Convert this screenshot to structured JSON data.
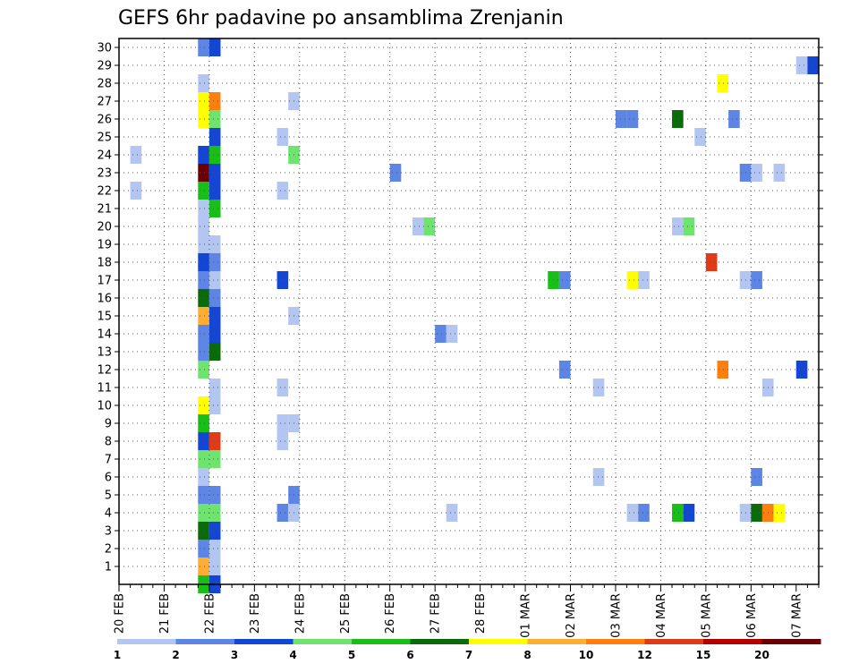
{
  "chart_data": {
    "type": "heatmap",
    "title": "GEFS 6hr padavine po ansamblima Zrenjanin",
    "xlabel": "",
    "ylabel": "",
    "x_start": "20 FEB",
    "x_step_hours": 6,
    "x_steps": 62,
    "x_ticks": [
      "20 FEB",
      "21 FEB",
      "22 FEB",
      "23 FEB",
      "24 FEB",
      "25 FEB",
      "26 FEB",
      "27 FEB",
      "28 FEB",
      "01 MAR",
      "02 MAR",
      "03 MAR",
      "04 MAR",
      "05 MAR",
      "06 MAR",
      "07 MAR"
    ],
    "y_ticks": [
      1,
      2,
      3,
      4,
      5,
      6,
      7,
      8,
      9,
      10,
      11,
      12,
      13,
      14,
      15,
      16,
      17,
      18,
      19,
      20,
      21,
      22,
      23,
      24,
      25,
      26,
      27,
      28,
      29,
      30
    ],
    "ylim": [
      0,
      30
    ],
    "grid": true,
    "legend": {
      "placement": "bottom",
      "boundaries": [
        "1",
        "2",
        "3",
        "4",
        "5",
        "6",
        "7",
        "8",
        "10",
        "12",
        "15",
        "20"
      ],
      "colors": [
        "#b3c6f2",
        "#5c85e6",
        "#1446d6",
        "#6ee36e",
        "#17bf17",
        "#0b6b0b",
        "#ffff00",
        "#ffad33",
        "#ff7f0e",
        "#e03a16",
        "#b30000",
        "#6b0000"
      ]
    },
    "cells": [
      {
        "t": 7,
        "m": 0,
        "c": 4
      },
      {
        "t": 8,
        "m": 0,
        "c": 2
      },
      {
        "t": 7,
        "m": 1,
        "c": 7
      },
      {
        "t": 8,
        "m": 1,
        "c": 0
      },
      {
        "t": 7,
        "m": 2,
        "c": 1
      },
      {
        "t": 8,
        "m": 2,
        "c": 0
      },
      {
        "t": 7,
        "m": 3,
        "c": 5
      },
      {
        "t": 8,
        "m": 3,
        "c": 2
      },
      {
        "t": 7,
        "m": 4,
        "c": 3
      },
      {
        "t": 8,
        "m": 4,
        "c": 3
      },
      {
        "t": 14,
        "m": 4,
        "c": 1
      },
      {
        "t": 15,
        "m": 4,
        "c": 0
      },
      {
        "t": 29,
        "m": 4,
        "c": 0
      },
      {
        "t": 45,
        "m": 4,
        "c": 0
      },
      {
        "t": 46,
        "m": 4,
        "c": 1
      },
      {
        "t": 49,
        "m": 4,
        "c": 4
      },
      {
        "t": 50,
        "m": 4,
        "c": 2
      },
      {
        "t": 55,
        "m": 4,
        "c": 0
      },
      {
        "t": 56,
        "m": 4,
        "c": 5
      },
      {
        "t": 57,
        "m": 4,
        "c": 8
      },
      {
        "t": 58,
        "m": 4,
        "c": 6
      },
      {
        "t": 7,
        "m": 5,
        "c": 1
      },
      {
        "t": 8,
        "m": 5,
        "c": 1
      },
      {
        "t": 15,
        "m": 5,
        "c": 1
      },
      {
        "t": 7,
        "m": 6,
        "c": 0
      },
      {
        "t": 42,
        "m": 6,
        "c": 0
      },
      {
        "t": 56,
        "m": 6,
        "c": 1
      },
      {
        "t": 7,
        "m": 7,
        "c": 3
      },
      {
        "t": 8,
        "m": 7,
        "c": 3
      },
      {
        "t": 7,
        "m": 8,
        "c": 2
      },
      {
        "t": 8,
        "m": 8,
        "c": 9
      },
      {
        "t": 14,
        "m": 8,
        "c": 0
      },
      {
        "t": 7,
        "m": 9,
        "c": 4
      },
      {
        "t": 14,
        "m": 9,
        "c": 0
      },
      {
        "t": 15,
        "m": 9,
        "c": 0
      },
      {
        "t": 7,
        "m": 10,
        "c": 6
      },
      {
        "t": 8,
        "m": 10,
        "c": 0
      },
      {
        "t": 8,
        "m": 11,
        "c": 0
      },
      {
        "t": 14,
        "m": 11,
        "c": 0
      },
      {
        "t": 42,
        "m": 11,
        "c": 0
      },
      {
        "t": 57,
        "m": 11,
        "c": 0
      },
      {
        "t": 7,
        "m": 12,
        "c": 3
      },
      {
        "t": 39,
        "m": 12,
        "c": 1
      },
      {
        "t": 53,
        "m": 12,
        "c": 8
      },
      {
        "t": 60,
        "m": 12,
        "c": 2
      },
      {
        "t": 7,
        "m": 13,
        "c": 1
      },
      {
        "t": 8,
        "m": 13,
        "c": 5
      },
      {
        "t": 7,
        "m": 14,
        "c": 1
      },
      {
        "t": 8,
        "m": 14,
        "c": 2
      },
      {
        "t": 28,
        "m": 14,
        "c": 1
      },
      {
        "t": 29,
        "m": 14,
        "c": 0
      },
      {
        "t": 7,
        "m": 15,
        "c": 7
      },
      {
        "t": 8,
        "m": 15,
        "c": 2
      },
      {
        "t": 15,
        "m": 15,
        "c": 0
      },
      {
        "t": 7,
        "m": 16,
        "c": 5
      },
      {
        "t": 8,
        "m": 16,
        "c": 1
      },
      {
        "t": 7,
        "m": 17,
        "c": 1
      },
      {
        "t": 8,
        "m": 17,
        "c": 0
      },
      {
        "t": 14,
        "m": 17,
        "c": 2
      },
      {
        "t": 38,
        "m": 17,
        "c": 4
      },
      {
        "t": 39,
        "m": 17,
        "c": 1
      },
      {
        "t": 45,
        "m": 17,
        "c": 6
      },
      {
        "t": 46,
        "m": 17,
        "c": 0
      },
      {
        "t": 55,
        "m": 17,
        "c": 0
      },
      {
        "t": 56,
        "m": 17,
        "c": 1
      },
      {
        "t": 7,
        "m": 18,
        "c": 2
      },
      {
        "t": 8,
        "m": 18,
        "c": 1
      },
      {
        "t": 52,
        "m": 18,
        "c": 9
      },
      {
        "t": 7,
        "m": 19,
        "c": 0
      },
      {
        "t": 8,
        "m": 19,
        "c": 0
      },
      {
        "t": 7,
        "m": 20,
        "c": 0
      },
      {
        "t": 26,
        "m": 20,
        "c": 0
      },
      {
        "t": 27,
        "m": 20,
        "c": 3
      },
      {
        "t": 49,
        "m": 20,
        "c": 0
      },
      {
        "t": 50,
        "m": 20,
        "c": 3
      },
      {
        "t": 7,
        "m": 21,
        "c": 0
      },
      {
        "t": 8,
        "m": 21,
        "c": 4
      },
      {
        "t": 1,
        "m": 22,
        "c": 0
      },
      {
        "t": 7,
        "m": 22,
        "c": 4
      },
      {
        "t": 8,
        "m": 22,
        "c": 2
      },
      {
        "t": 14,
        "m": 22,
        "c": 0
      },
      {
        "t": 7,
        "m": 23,
        "c": 11
      },
      {
        "t": 8,
        "m": 23,
        "c": 2
      },
      {
        "t": 24,
        "m": 23,
        "c": 1
      },
      {
        "t": 55,
        "m": 23,
        "c": 1
      },
      {
        "t": 56,
        "m": 23,
        "c": 0
      },
      {
        "t": 58,
        "m": 23,
        "c": 0
      },
      {
        "t": 1,
        "m": 24,
        "c": 0
      },
      {
        "t": 7,
        "m": 24,
        "c": 2
      },
      {
        "t": 8,
        "m": 24,
        "c": 4
      },
      {
        "t": 15,
        "m": 24,
        "c": 3
      },
      {
        "t": 8,
        "m": 25,
        "c": 2
      },
      {
        "t": 14,
        "m": 25,
        "c": 0
      },
      {
        "t": 51,
        "m": 25,
        "c": 0
      },
      {
        "t": 7,
        "m": 26,
        "c": 6
      },
      {
        "t": 8,
        "m": 26,
        "c": 3
      },
      {
        "t": 44,
        "m": 26,
        "c": 1
      },
      {
        "t": 45,
        "m": 26,
        "c": 1
      },
      {
        "t": 49,
        "m": 26,
        "c": 5
      },
      {
        "t": 54,
        "m": 26,
        "c": 1
      },
      {
        "t": 7,
        "m": 27,
        "c": 6
      },
      {
        "t": 8,
        "m": 27,
        "c": 8
      },
      {
        "t": 15,
        "m": 27,
        "c": 0
      },
      {
        "t": 7,
        "m": 28,
        "c": 0
      },
      {
        "t": 53,
        "m": 28,
        "c": 6
      },
      {
        "t": 60,
        "m": 29,
        "c": 0
      },
      {
        "t": 61,
        "m": 29,
        "c": 2
      },
      {
        "t": 7,
        "m": 30,
        "c": 1
      },
      {
        "t": 8,
        "m": 30,
        "c": 2
      }
    ]
  }
}
